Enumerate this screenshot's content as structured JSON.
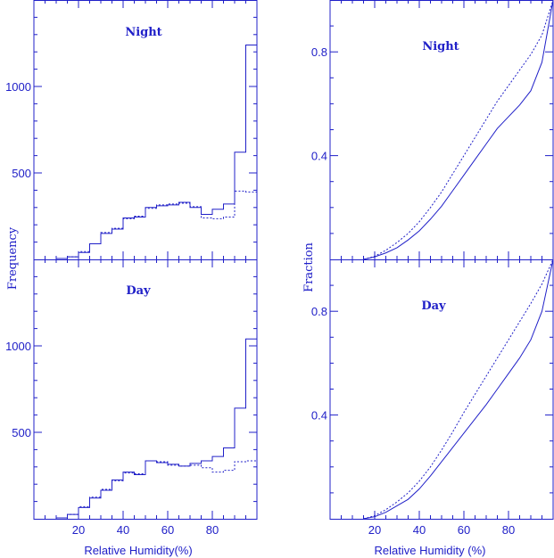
{
  "colors": {
    "ink": "#2020c8"
  },
  "chart_data": [
    {
      "type": "histogram",
      "title": "Night",
      "ylabel": "Frequency",
      "xlim": [
        0,
        100
      ],
      "ylim": [
        0,
        1500
      ],
      "yticks": [
        500,
        1000
      ],
      "yticklabels": [
        "500",
        "1000"
      ],
      "series": [
        {
          "style": "solid",
          "edges": [
            10,
            15,
            20,
            25,
            30,
            35,
            40,
            45,
            50,
            55,
            60,
            65,
            70,
            75,
            80,
            85,
            90,
            95,
            97.5,
            100
          ],
          "values": [
            5,
            15,
            40,
            90,
            150,
            175,
            240,
            245,
            300,
            310,
            315,
            330,
            300,
            260,
            290,
            320,
            620,
            1240,
            1240
          ]
        },
        {
          "style": "dotted",
          "edges": [
            10,
            15,
            20,
            25,
            30,
            35,
            40,
            45,
            50,
            55,
            60,
            65,
            70,
            75,
            80,
            85,
            90,
            95,
            97.5,
            100
          ],
          "values": [
            5,
            15,
            45,
            90,
            155,
            180,
            235,
            250,
            295,
            315,
            320,
            325,
            305,
            240,
            235,
            245,
            395,
            390,
            390
          ]
        }
      ]
    },
    {
      "type": "line",
      "title": "Night",
      "ylabel": "Fraction",
      "xlim": [
        0,
        100
      ],
      "ylim": [
        0,
        1
      ],
      "yticks": [
        0.4,
        0.8
      ],
      "yticklabels": [
        "0.4",
        "0.8"
      ],
      "series": [
        {
          "style": "solid",
          "x": [
            15,
            20,
            25,
            30,
            35,
            40,
            45,
            50,
            55,
            60,
            65,
            70,
            75,
            80,
            85,
            90,
            95,
            100
          ],
          "y": [
            0,
            0.01,
            0.025,
            0.045,
            0.075,
            0.11,
            0.155,
            0.205,
            0.265,
            0.325,
            0.385,
            0.445,
            0.505,
            0.55,
            0.595,
            0.65,
            0.76,
            1.0
          ]
        },
        {
          "style": "dotted",
          "x": [
            15,
            20,
            25,
            30,
            35,
            40,
            45,
            50,
            55,
            60,
            65,
            70,
            75,
            80,
            85,
            90,
            95,
            100
          ],
          "y": [
            0,
            0.012,
            0.035,
            0.065,
            0.1,
            0.145,
            0.2,
            0.26,
            0.33,
            0.4,
            0.47,
            0.54,
            0.61,
            0.67,
            0.73,
            0.79,
            0.865,
            1.0
          ]
        }
      ]
    },
    {
      "type": "histogram",
      "title": "Day",
      "xlabel": "Relative Humidity(%)",
      "xlim": [
        0,
        100
      ],
      "ylim": [
        0,
        1500
      ],
      "xticks": [
        20,
        40,
        60,
        80
      ],
      "xticklabels": [
        "20",
        "40",
        "60",
        "80"
      ],
      "yticks": [
        500,
        1000
      ],
      "yticklabels": [
        "500",
        "1000"
      ],
      "series": [
        {
          "style": "solid",
          "edges": [
            10,
            15,
            20,
            25,
            30,
            35,
            40,
            45,
            50,
            55,
            60,
            65,
            70,
            75,
            80,
            85,
            90,
            95,
            97.5,
            100
          ],
          "values": [
            5,
            25,
            65,
            120,
            165,
            225,
            270,
            255,
            335,
            325,
            315,
            305,
            320,
            335,
            360,
            410,
            640,
            1040,
            1040
          ]
        },
        {
          "style": "dotted",
          "edges": [
            10,
            15,
            20,
            25,
            30,
            35,
            40,
            45,
            50,
            55,
            60,
            65,
            70,
            75,
            80,
            85,
            90,
            95,
            97.5,
            100
          ],
          "values": [
            5,
            25,
            70,
            125,
            170,
            220,
            265,
            260,
            335,
            330,
            310,
            305,
            310,
            295,
            270,
            280,
            330,
            335,
            335
          ]
        }
      ]
    },
    {
      "type": "line",
      "title": "Day",
      "xlabel": "Relative Humidity (%)",
      "xlim": [
        0,
        100
      ],
      "ylim": [
        0,
        1
      ],
      "xticks": [
        20,
        40,
        60,
        80
      ],
      "xticklabels": [
        "20",
        "40",
        "60",
        "80"
      ],
      "yticks": [
        0.4,
        0.8
      ],
      "yticklabels": [
        "0.4",
        "0.8"
      ],
      "series": [
        {
          "style": "solid",
          "x": [
            15,
            20,
            25,
            30,
            35,
            40,
            45,
            50,
            55,
            60,
            65,
            70,
            75,
            80,
            85,
            90,
            95,
            100
          ],
          "y": [
            0,
            0.008,
            0.025,
            0.05,
            0.075,
            0.115,
            0.165,
            0.22,
            0.275,
            0.33,
            0.385,
            0.44,
            0.5,
            0.56,
            0.62,
            0.69,
            0.8,
            1.0
          ]
        },
        {
          "style": "dotted",
          "x": [
            15,
            20,
            25,
            30,
            35,
            40,
            45,
            50,
            55,
            60,
            65,
            70,
            75,
            80,
            85,
            90,
            95,
            100
          ],
          "y": [
            0,
            0.012,
            0.035,
            0.065,
            0.1,
            0.145,
            0.2,
            0.265,
            0.335,
            0.41,
            0.48,
            0.55,
            0.62,
            0.69,
            0.76,
            0.83,
            0.905,
            1.0
          ]
        }
      ]
    }
  ]
}
